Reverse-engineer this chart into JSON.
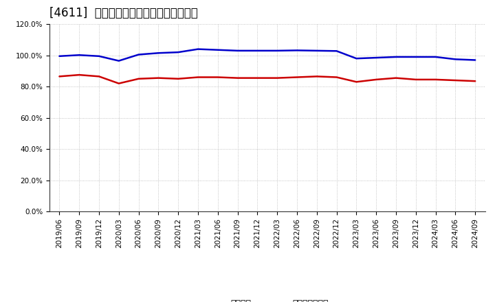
{
  "title": "[4611]  固定比率、固定長期適合率の推移",
  "background_color": "#ffffff",
  "plot_bg_color": "#ffffff",
  "grid_color": "#aaaaaa",
  "legend_labels": [
    "固定比率",
    "固定長期適合率"
  ],
  "line_colors": [
    "#0000cc",
    "#cc0000"
  ],
  "line_width": 1.8,
  "x_labels": [
    "2019/06",
    "2019/09",
    "2019/12",
    "2020/03",
    "2020/06",
    "2020/09",
    "2020/12",
    "2021/03",
    "2021/06",
    "2021/09",
    "2021/12",
    "2022/03",
    "2022/06",
    "2022/09",
    "2022/12",
    "2023/03",
    "2023/06",
    "2023/09",
    "2023/12",
    "2024/03",
    "2024/06",
    "2024/09"
  ],
  "series1": [
    99.5,
    100.2,
    99.5,
    96.5,
    100.5,
    101.5,
    102.0,
    104.0,
    103.5,
    103.0,
    103.0,
    103.0,
    103.2,
    103.0,
    102.8,
    98.0,
    98.5,
    99.0,
    99.0,
    99.0,
    97.5,
    97.0
  ],
  "series2": [
    86.5,
    87.5,
    86.5,
    82.0,
    85.0,
    85.5,
    85.0,
    86.0,
    86.0,
    85.5,
    85.5,
    85.5,
    86.0,
    86.5,
    86.0,
    83.0,
    84.5,
    85.5,
    84.5,
    84.5,
    84.0,
    83.5
  ],
  "ylim": [
    0.0,
    120.0
  ],
  "yticks": [
    0.0,
    20.0,
    40.0,
    60.0,
    80.0,
    100.0,
    120.0
  ],
  "figsize": [
    7.2,
    4.4
  ],
  "dpi": 100,
  "title_fontsize": 12,
  "tick_fontsize": 7.5,
  "legend_fontsize": 9
}
